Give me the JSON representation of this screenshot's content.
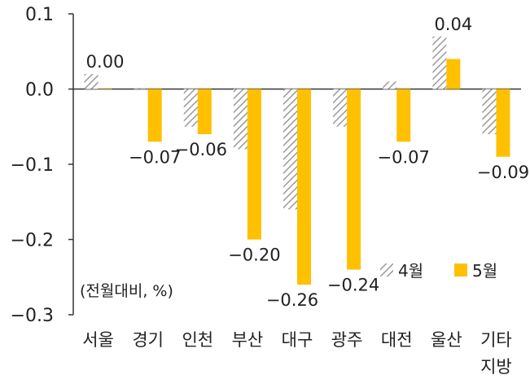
{
  "chart_data": {
    "type": "bar",
    "unit_label": "(전월대비, %)",
    "categories": [
      "서울",
      "경기",
      "인천",
      "부산",
      "대구",
      "광주",
      "대전",
      "울산",
      "기타 지방"
    ],
    "series": [
      {
        "name": "4월",
        "values": [
          0.02,
          0.0,
          -0.05,
          -0.08,
          -0.16,
          -0.05,
          0.01,
          0.07,
          -0.06
        ],
        "pattern": "hatched",
        "color": "#9a9a9a"
      },
      {
        "name": "5월",
        "values": [
          0.0,
          -0.07,
          -0.06,
          -0.2,
          -0.26,
          -0.24,
          -0.07,
          0.04,
          -0.09
        ],
        "color": "#ffc000"
      }
    ],
    "data_labels": [
      "0.00",
      "-0.07",
      "-0.06",
      "-0.20",
      "-0.26",
      "-0.24",
      "-0.07",
      "0.04",
      "-0.09"
    ],
    "ylim": [
      -0.3,
      0.1
    ],
    "yticks": [
      "0.1",
      "0.0",
      "-0.1",
      "-0.2",
      "-0.3"
    ],
    "grid": false,
    "legend_position": "bottom-right"
  }
}
